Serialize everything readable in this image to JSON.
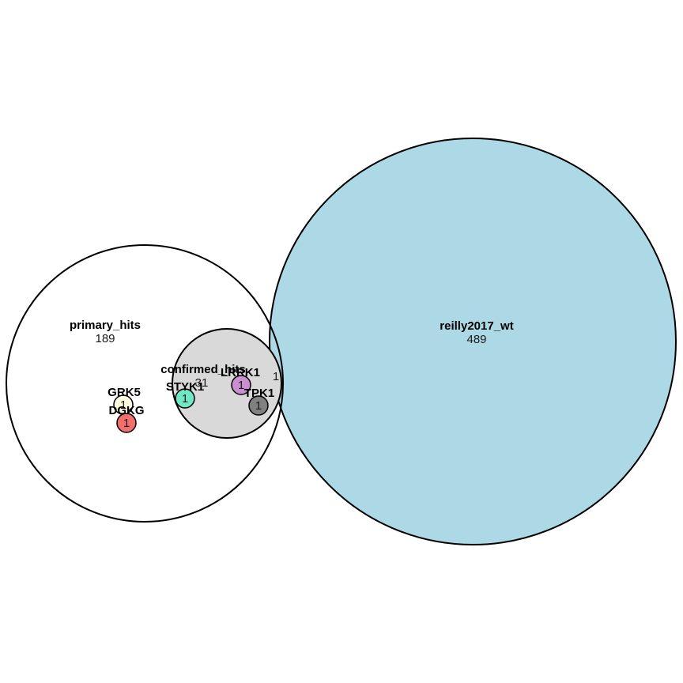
{
  "sets": [
    {
      "id": "primary_hits",
      "name": "primary_hits",
      "count": "189",
      "fill": "none"
    },
    {
      "id": "reilly2017_wt",
      "name": "reilly2017_wt",
      "count": "489",
      "fill": "#add8e6"
    },
    {
      "id": "confirmed_hits",
      "name": "confirmed_hits",
      "count": "31",
      "fill": "#d9d9d9"
    }
  ],
  "overlap_count": "1",
  "genes": [
    {
      "id": "grk5",
      "name": "GRK5",
      "count": "1",
      "fill": "#fefee0"
    },
    {
      "id": "dgkg",
      "name": "DGKG",
      "count": "1",
      "fill": "#f36f6f"
    },
    {
      "id": "styk1",
      "name": "STYK1",
      "count": "1",
      "fill": "#6fe8c4"
    },
    {
      "id": "lrrk1",
      "name": "LRRK1",
      "count": "1",
      "fill": "#c98fd0"
    },
    {
      "id": "tpk1",
      "name": "TPK1",
      "count": "1",
      "fill": "#808080"
    }
  ]
}
